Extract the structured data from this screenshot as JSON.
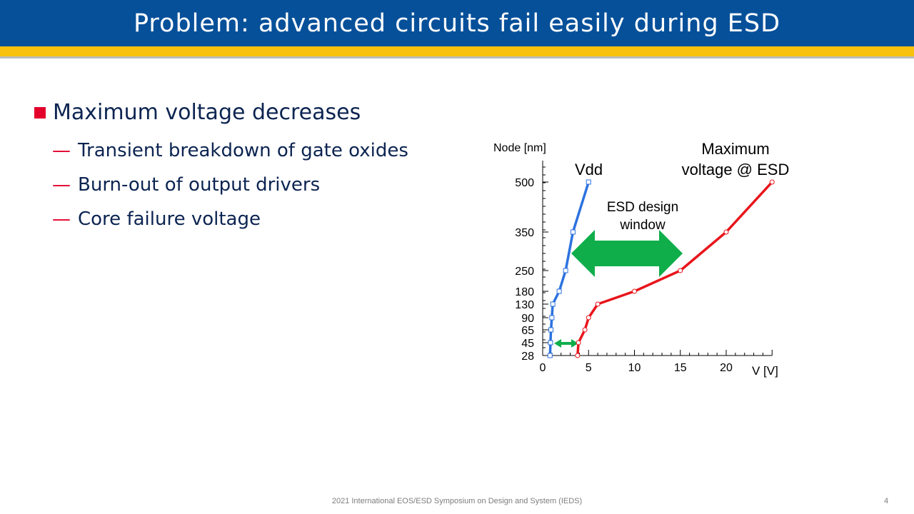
{
  "slide": {
    "title": "Problem: advanced circuits fail easily during ESD",
    "bullet": "Maximum voltage decreases",
    "sub_bullets": [
      "Transient breakdown of gate oxides",
      "Burn-out of output drivers",
      "Core failure voltage"
    ],
    "footer": "2021 International EOS/ESD Symposium on Design and System (IEDS)",
    "page_number": "4"
  },
  "colors": {
    "title_bar": "#06509a",
    "stripe": "#f7c10c",
    "bullet_square": "#e3002b",
    "text": "#0c2451",
    "vdd": "#2c72df",
    "max_voltage": "#e8141b",
    "arrow": "#0fae4b"
  },
  "chart_data": {
    "type": "line",
    "xlabel": "V [V]",
    "ylabel": "Node [nm]",
    "xlim": [
      0,
      25
    ],
    "x_ticks": [
      "0",
      "5",
      "10",
      "15",
      "20"
    ],
    "y_ticks": [
      "28",
      "45",
      "65",
      "90",
      "130",
      "180",
      "250",
      "350",
      "500"
    ],
    "series": [
      {
        "name": "Vdd",
        "points": [
          {
            "x": 0.8,
            "y": 28
          },
          {
            "x": 0.85,
            "y": 45
          },
          {
            "x": 0.9,
            "y": 65
          },
          {
            "x": 1.0,
            "y": 90
          },
          {
            "x": 1.1,
            "y": 130
          },
          {
            "x": 1.8,
            "y": 180
          },
          {
            "x": 2.5,
            "y": 250
          },
          {
            "x": 3.3,
            "y": 350
          },
          {
            "x": 5.0,
            "y": 500
          }
        ]
      },
      {
        "name": "Maximum\nvoltage @ ESD",
        "points": [
          {
            "x": 3.8,
            "y": 28
          },
          {
            "x": 3.9,
            "y": 45
          },
          {
            "x": 4.6,
            "y": 65
          },
          {
            "x": 5.0,
            "y": 90
          },
          {
            "x": 6.0,
            "y": 130
          },
          {
            "x": 10.0,
            "y": 180
          },
          {
            "x": 15.0,
            "y": 250
          },
          {
            "x": 20.0,
            "y": 350
          },
          {
            "x": 25.0,
            "y": 500
          }
        ]
      }
    ],
    "annotations": [
      {
        "text": "ESD design\nwindow"
      }
    ]
  }
}
